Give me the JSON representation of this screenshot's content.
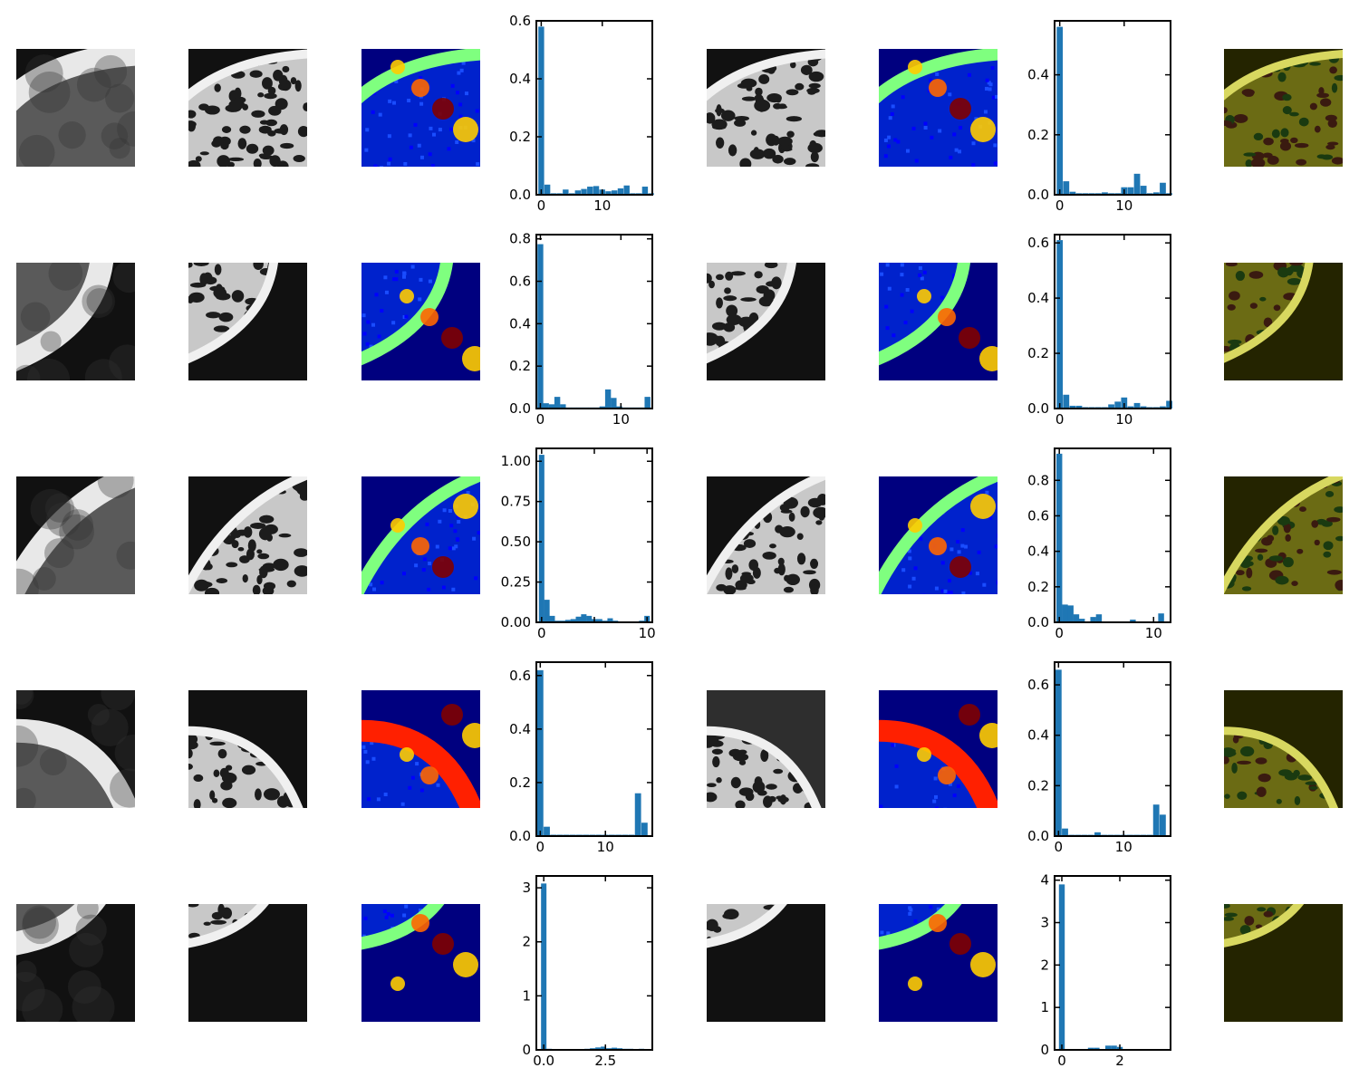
{
  "colors": {
    "bar": "#1f77b4",
    "jet_background": "#00007f",
    "overlay_background": "#242400"
  },
  "icons": [
    "grayscale-ct-patch",
    "jet-thickness-map",
    "red-green-overlay"
  ],
  "chart_data": [
    {
      "type": "bar",
      "row": 1,
      "panel": "left",
      "bin_width": 0.95,
      "x": [
        0,
        1,
        2,
        3,
        4,
        5,
        6,
        7,
        8,
        9,
        10,
        11,
        12,
        13,
        14,
        15,
        16,
        17,
        18
      ],
      "values": [
        0.58,
        0.035,
        0.005,
        0.005,
        0.018,
        0.005,
        0.015,
        0.02,
        0.028,
        0.03,
        0.018,
        0.012,
        0.015,
        0.022,
        0.032,
        0.005,
        0.005,
        0.028,
        0.005
      ],
      "xlim": [
        -0.8,
        18.2
      ],
      "ylim": [
        0,
        0.6
      ],
      "xticks": [
        0,
        10
      ],
      "xticklabels": [
        "0",
        "10"
      ],
      "yticks": [
        0,
        0.2,
        0.4,
        0.6
      ],
      "yticklabels": [
        "0.0",
        "0.2",
        "0.4",
        "0.6"
      ]
    },
    {
      "type": "bar",
      "row": 1,
      "panel": "right",
      "bin_width": 0.95,
      "x": [
        0,
        1,
        2,
        3,
        4,
        5,
        6,
        7,
        8,
        9,
        10,
        11,
        12,
        13,
        14,
        15,
        16,
        17
      ],
      "values": [
        0.56,
        0.045,
        0.01,
        0.005,
        0.005,
        0.005,
        0.005,
        0.008,
        0.005,
        0.005,
        0.025,
        0.025,
        0.07,
        0.03,
        0.005,
        0.008,
        0.04,
        0.005
      ],
      "xlim": [
        -0.8,
        17.2
      ],
      "ylim": [
        0,
        0.58
      ],
      "xticks": [
        0,
        10
      ],
      "xticklabels": [
        "0",
        "10"
      ],
      "yticks": [
        0,
        0.2,
        0.4
      ],
      "yticklabels": [
        "0.0",
        "0.2",
        "0.4"
      ]
    },
    {
      "type": "bar",
      "row": 2,
      "panel": "left",
      "bin_width": 0.72,
      "x": [
        0,
        0.7,
        1.4,
        2.1,
        2.8,
        3.5,
        4.2,
        4.9,
        5.6,
        6.3,
        7.0,
        7.7,
        8.4,
        9.1,
        9.8,
        10.5,
        11.2,
        11.9,
        12.6,
        13.3
      ],
      "values": [
        0.775,
        0.025,
        0.02,
        0.055,
        0.02,
        0.005,
        0.005,
        0.005,
        0.005,
        0.005,
        0.005,
        0.01,
        0.09,
        0.05,
        0.01,
        0.005,
        0.005,
        0.005,
        0.005,
        0.055
      ],
      "xlim": [
        -0.5,
        13.9
      ],
      "ylim": [
        0,
        0.82
      ],
      "xticks": [
        0,
        10
      ],
      "xticklabels": [
        "0",
        "10"
      ],
      "yticks": [
        0,
        0.2,
        0.4,
        0.6,
        0.8
      ],
      "yticklabels": [
        "0.0",
        "0.2",
        "0.4",
        "0.6",
        "0.8"
      ]
    },
    {
      "type": "bar",
      "row": 2,
      "panel": "right",
      "bin_width": 0.95,
      "x": [
        0,
        1,
        2,
        3,
        4,
        5,
        6,
        7,
        8,
        9,
        10,
        11,
        12,
        13,
        14,
        15,
        16,
        17
      ],
      "values": [
        0.61,
        0.05,
        0.01,
        0.01,
        0.005,
        0.005,
        0.005,
        0.005,
        0.015,
        0.025,
        0.04,
        0.008,
        0.02,
        0.008,
        0.005,
        0.005,
        0.008,
        0.028
      ],
      "xlim": [
        -0.8,
        17.2
      ],
      "ylim": [
        0,
        0.63
      ],
      "xticks": [
        0,
        10
      ],
      "xticklabels": [
        "0",
        "10"
      ],
      "yticks": [
        0,
        0.2,
        0.4,
        0.6
      ],
      "yticklabels": [
        "0.0",
        "0.2",
        "0.4",
        "0.6"
      ]
    },
    {
      "type": "bar",
      "row": 3,
      "panel": "left",
      "bin_width": 0.52,
      "x": [
        0,
        0.5,
        1,
        1.5,
        2,
        2.5,
        3,
        3.5,
        4,
        4.5,
        5,
        5.5,
        6,
        6.5,
        7,
        7.5,
        8,
        8.5,
        9,
        9.5,
        10
      ],
      "values": [
        1.04,
        0.14,
        0.04,
        0.01,
        0.01,
        0.015,
        0.02,
        0.035,
        0.05,
        0.04,
        0.02,
        0.02,
        0.01,
        0.025,
        0.01,
        0.005,
        0.005,
        0.005,
        0.005,
        0.01,
        0.04
      ],
      "xlim": [
        -0.5,
        10.5
      ],
      "ylim": [
        0,
        1.08
      ],
      "xticks": [
        0,
        5,
        10
      ],
      "xticklabels": [
        "0",
        "",
        "10"
      ],
      "yticks": [
        0,
        0.25,
        0.5,
        0.75,
        1.0
      ],
      "yticklabels": [
        "0.00",
        "0.25",
        "0.50",
        "0.75",
        "1.00"
      ]
    },
    {
      "type": "bar",
      "row": 3,
      "panel": "right",
      "bin_width": 0.62,
      "x": [
        0,
        0.6,
        1.2,
        1.8,
        2.4,
        3.0,
        3.6,
        4.2,
        4.8,
        5.4,
        6.0,
        6.6,
        7.2,
        7.8,
        8.4,
        9.0,
        9.6,
        10.2,
        10.8,
        11.4
      ],
      "values": [
        0.95,
        0.1,
        0.095,
        0.045,
        0.02,
        0.005,
        0.03,
        0.045,
        0.005,
        0.005,
        0.005,
        0.005,
        0.005,
        0.015,
        0.005,
        0.005,
        0.005,
        0.005,
        0.05,
        0.005
      ],
      "xlim": [
        -0.5,
        11.8
      ],
      "ylim": [
        0,
        0.98
      ],
      "xticks": [
        0,
        10
      ],
      "xticklabels": [
        "0",
        "10"
      ],
      "yticks": [
        0,
        0.2,
        0.4,
        0.6,
        0.8
      ],
      "yticklabels": [
        "0.0",
        "0.2",
        "0.4",
        "0.6",
        "0.8"
      ]
    },
    {
      "type": "bar",
      "row": 4,
      "panel": "left",
      "bin_width": 0.95,
      "x": [
        0,
        1,
        2,
        3,
        4,
        5,
        6,
        7,
        8,
        9,
        10,
        11,
        12,
        13,
        14,
        15,
        16
      ],
      "values": [
        0.62,
        0.035,
        0.005,
        0.005,
        0.005,
        0.005,
        0.005,
        0.005,
        0.005,
        0.005,
        0.005,
        0.005,
        0.005,
        0.005,
        0.005,
        0.16,
        0.05
      ],
      "xlim": [
        -0.6,
        17.2
      ],
      "ylim": [
        0,
        0.65
      ],
      "xticks": [
        0,
        10
      ],
      "xticklabels": [
        "0",
        "10"
      ],
      "yticks": [
        0,
        0.2,
        0.4,
        0.6
      ],
      "yticklabels": [
        "0.0",
        "0.2",
        "0.4",
        "0.6"
      ]
    },
    {
      "type": "bar",
      "row": 4,
      "panel": "right",
      "bin_width": 0.95,
      "x": [
        0,
        1,
        2,
        3,
        4,
        5,
        6,
        7,
        8,
        9,
        10,
        11,
        12,
        13,
        14,
        15,
        16
      ],
      "values": [
        0.66,
        0.03,
        0.005,
        0.005,
        0.005,
        0.005,
        0.015,
        0.005,
        0.005,
        0.005,
        0.005,
        0.005,
        0.005,
        0.005,
        0.005,
        0.125,
        0.085
      ],
      "xlim": [
        -0.6,
        17.2
      ],
      "ylim": [
        0,
        0.69
      ],
      "xticks": [
        0,
        10
      ],
      "xticklabels": [
        "0",
        "10"
      ],
      "yticks": [
        0,
        0.2,
        0.4,
        0.6
      ],
      "yticklabels": [
        "0.0",
        "0.2",
        "0.4",
        "0.6"
      ]
    },
    {
      "type": "bar",
      "row": 5,
      "panel": "left",
      "bin_width": 0.22,
      "x": [
        0,
        0.22,
        0.44,
        0.66,
        0.88,
        1.1,
        1.32,
        1.54,
        1.76,
        1.98,
        2.2,
        2.42,
        2.64,
        2.86,
        3.08,
        3.3,
        3.52,
        3.74,
        3.96
      ],
      "values": [
        3.08,
        0.02,
        0.01,
        0.01,
        0.005,
        0.01,
        0.01,
        0.015,
        0.02,
        0.03,
        0.045,
        0.06,
        0.03,
        0.04,
        0.03,
        0.02,
        0.02,
        0.015,
        0.02
      ],
      "xlim": [
        -0.3,
        4.4
      ],
      "ylim": [
        0,
        3.22
      ],
      "xticks": [
        0,
        2.5
      ],
      "xticklabels": [
        "0.0",
        "2.5"
      ],
      "yticks": [
        0,
        1,
        2,
        3
      ],
      "yticklabels": [
        "0",
        "1",
        "2",
        "3"
      ]
    },
    {
      "type": "bar",
      "row": 5,
      "panel": "right",
      "bin_width": 0.2,
      "x": [
        0,
        0.2,
        0.4,
        0.6,
        0.8,
        1.0,
        1.2,
        1.4,
        1.6,
        1.8,
        2.0,
        2.2,
        2.4,
        2.6,
        2.8,
        3.0,
        3.2,
        3.4
      ],
      "values": [
        3.9,
        0.02,
        0.01,
        0.01,
        0.01,
        0.05,
        0.05,
        0.02,
        0.1,
        0.1,
        0.07,
        0.01,
        0.01,
        0.01,
        0.01,
        0.01,
        0.01,
        0.01
      ],
      "xlim": [
        -0.25,
        3.75
      ],
      "ylim": [
        0,
        4.1
      ],
      "xticks": [
        0,
        2
      ],
      "xticklabels": [
        "0",
        "2"
      ],
      "yticks": [
        0,
        1,
        2,
        3,
        4
      ],
      "yticklabels": [
        "0",
        "1",
        "2",
        "3",
        "4"
      ]
    }
  ]
}
